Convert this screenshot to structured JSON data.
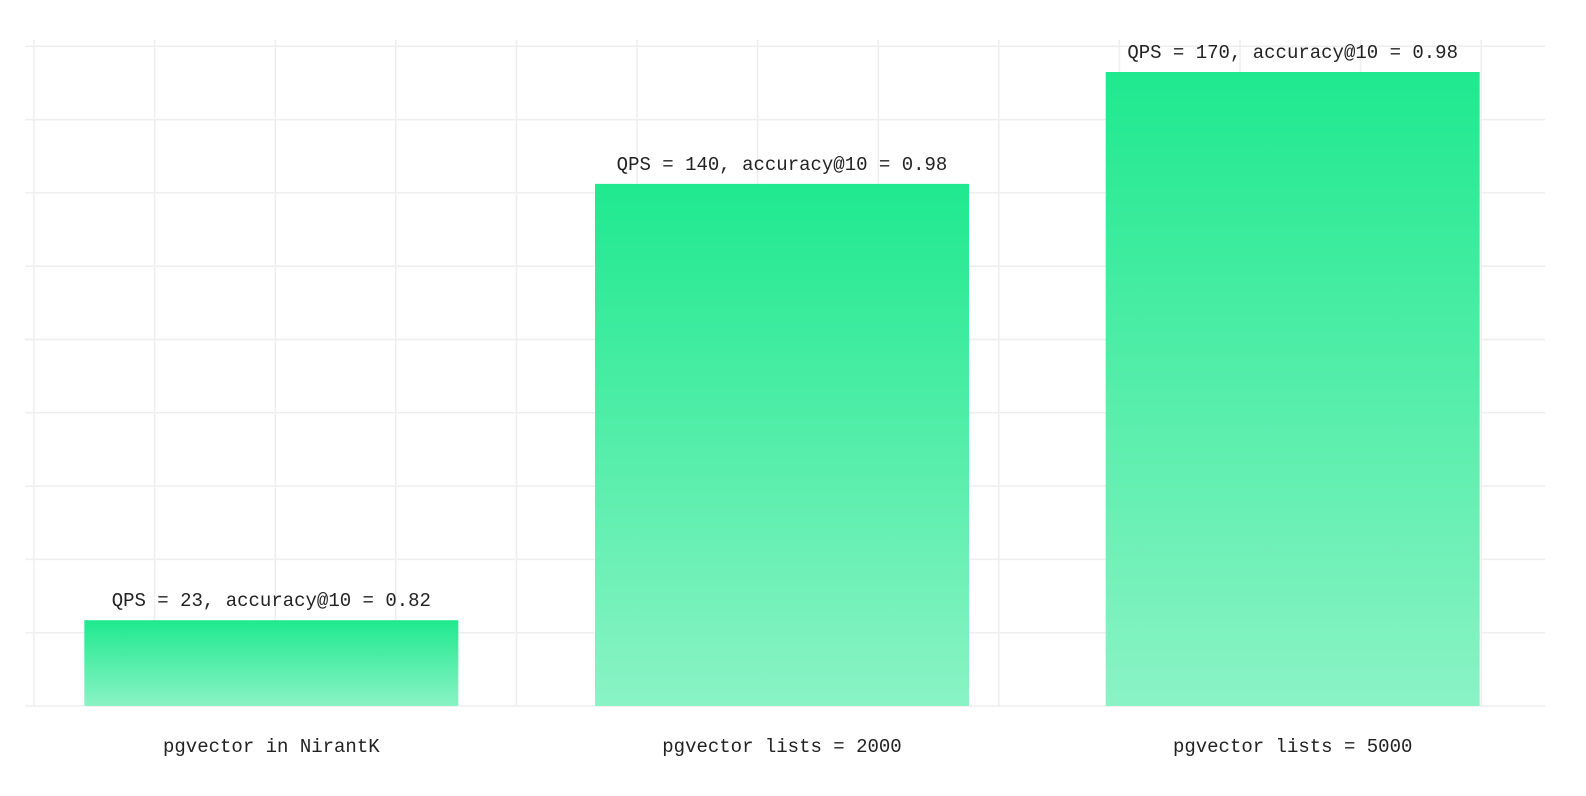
{
  "chart_data": {
    "type": "bar",
    "categories": [
      "pgvector in NirantK",
      "pgvector lists = 2000",
      "pgvector lists = 5000"
    ],
    "values": [
      23,
      140,
      170
    ],
    "value_labels": [
      "QPS = 23, accuracy@10 = 0.82",
      "QPS = 140, accuracy@10 = 0.98",
      "QPS = 170, accuracy@10 = 0.98"
    ],
    "color": "#1fe98f",
    "ylim": [
      0,
      170
    ],
    "grid": true
  }
}
